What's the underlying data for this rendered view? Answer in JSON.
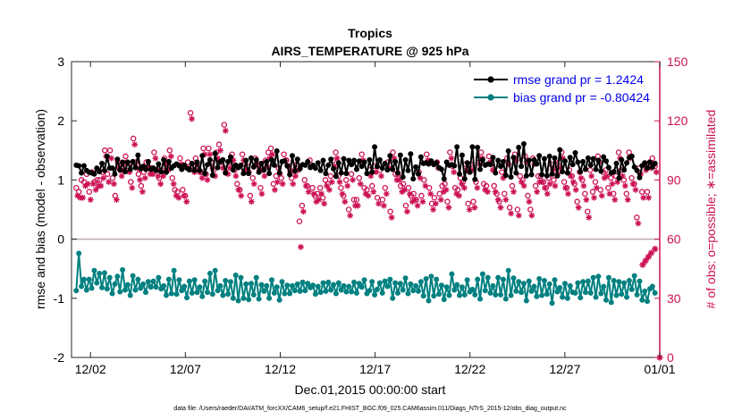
{
  "chart_data": {
    "type": "line",
    "title": "Tropics",
    "subtitle": "AIRS_TEMPERATURE @ 925 hPa",
    "xlabel": "Dec.01,2015 00:00:00 start",
    "ylabel_left": "rmse and bias (model - observation)",
    "ylabel_right": "# of obs: o=possible; ∗=assimilated",
    "footnote": "data file: /Users/raeder/DAI/ATM_forcXX/CAM6_setup/f.e21.FHIST_BGC.f09_025.CAM6assim.011/Diags_NTrS_2015-12/obs_diag_output.nc",
    "xlim": [
      0,
      31.0
    ],
    "ylim_left": [
      -2,
      3
    ],
    "ylim_right": [
      0,
      150
    ],
    "yticks_left": [
      -2,
      -1,
      0,
      1,
      2,
      3
    ],
    "yticks_right": [
      0,
      30,
      60,
      90,
      120,
      150
    ],
    "xticks": [
      {
        "pos": 1.0,
        "label": "12/02"
      },
      {
        "pos": 6.0,
        "label": "12/07"
      },
      {
        "pos": 11.0,
        "label": "12/12"
      },
      {
        "pos": 16.0,
        "label": "12/17"
      },
      {
        "pos": 21.0,
        "label": "12/22"
      },
      {
        "pos": 26.0,
        "label": "12/27"
      },
      {
        "pos": 31.0,
        "label": "01/01"
      }
    ],
    "zero_line": 0,
    "legend": {
      "placement": "top-right"
    },
    "series": [
      {
        "name": "rmse grand pr = 1.2424",
        "axis": "left",
        "color": "#000000",
        "values": [
          1.25,
          1.24,
          1.12,
          1.24,
          1.16,
          1.13,
          1.12,
          1.1,
          1.2,
          1.14,
          1.28,
          1.16,
          1.4,
          1.2,
          1.2,
          1.1,
          1.35,
          1.17,
          1.3,
          1.14,
          1.3,
          1.18,
          1.31,
          1.21,
          1.42,
          1.19,
          1.23,
          1.18,
          1.31,
          1.18,
          1.2,
          1.16,
          1.27,
          1.14,
          1.34,
          1.13,
          1.31,
          1.2,
          1.24,
          1.27,
          1.24,
          1.18,
          1.25,
          1.2,
          1.17,
          1.28,
          1.16,
          1.3,
          1.16,
          1.41,
          1.11,
          1.26,
          1.34,
          1.08,
          1.45,
          1.21,
          1.31,
          1.34,
          1.12,
          1.31,
          1.39,
          1.17,
          1.25,
          1.21,
          1.25,
          1.11,
          1.33,
          1.11,
          1.37,
          1.22,
          1.34,
          1.13,
          1.28,
          1.17,
          1.31,
          1.11,
          1.34,
          1.25,
          1.49,
          1.12,
          1.31,
          1.32,
          1.24,
          1.09,
          1.41,
          1.15,
          1.35,
          1.19,
          1.26,
          1.25,
          1.31,
          1.21,
          1.25,
          1.2,
          1.29,
          1.16,
          1.33,
          1.11,
          1.25,
          1.35,
          1.19,
          1.06,
          1.29,
          1.12,
          1.36,
          1.11,
          1.33,
          1.26,
          1.33,
          1.18,
          1.32,
          1.23,
          1.3,
          1.11,
          1.34,
          1.13,
          1.56,
          1.23,
          1.34,
          1.2,
          1.28,
          1.17,
          1.41,
          1.18,
          1.31,
          1.12,
          1.42,
          1.05,
          1.34,
          1.16,
          1.44,
          1.02,
          1.22,
          1.1,
          1.39,
          1.28,
          1.29,
          1.27,
          1.32,
          1.26,
          1.29,
          1.21,
          1.18,
          1.02,
          1.3,
          1.25,
          1.26,
          1.24,
          1.56,
          1.1,
          1.42,
          1.02,
          1.29,
          1.13,
          1.56,
          1.01,
          1.55,
          1.18,
          1.34,
          1.25,
          1.27,
          1.26,
          1.38,
          1.12,
          1.33,
          1.23,
          1.31,
          1.08,
          1.49,
          1.05,
          1.38,
          1.12,
          1.55,
          1.23,
          1.61,
          1.07,
          1.33,
          1.09,
          1.34,
          1.27,
          1.41,
          1.09,
          1.36,
          1.07,
          1.4,
          1.1,
          1.37,
          1.07,
          1.51,
          1.14,
          1.32,
          1.12,
          1.38,
          1.26,
          1.46,
          1.3,
          1.14,
          1.31,
          1.18,
          1.37,
          1.25,
          1.36,
          1.18,
          1.33,
          1.15,
          1.39,
          1.32,
          1.21,
          1.12,
          1.14,
          1.28,
          1.03,
          1.34,
          1.17,
          1.29,
          1.38,
          1.4,
          1.22,
          1.16,
          1.04,
          1.24,
          1.29,
          1.2,
          1.3,
          1.22,
          1.28
        ]
      },
      {
        "name": "bias grand pr = -0.80424",
        "axis": "left",
        "color": "#008080",
        "values": [
          -0.87,
          -0.24,
          -0.8,
          -0.68,
          -0.86,
          -0.68,
          -0.83,
          -0.53,
          -0.74,
          -0.58,
          -0.82,
          -0.57,
          -0.84,
          -0.65,
          -0.92,
          -0.76,
          -0.63,
          -0.89,
          -0.52,
          -0.86,
          -0.77,
          -0.95,
          -0.62,
          -0.86,
          -0.68,
          -0.83,
          -0.76,
          -0.9,
          -0.72,
          -0.81,
          -0.71,
          -0.81,
          -0.65,
          -0.84,
          -0.79,
          -0.95,
          -0.68,
          -0.92,
          -0.53,
          -0.93,
          -0.69,
          -0.87,
          -0.8,
          -0.99,
          -0.71,
          -0.91,
          -0.69,
          -0.9,
          -0.81,
          -0.97,
          -0.71,
          -0.9,
          -0.58,
          -0.93,
          -0.53,
          -0.87,
          -0.79,
          -0.95,
          -0.7,
          -0.93,
          -0.72,
          -1.0,
          -0.61,
          -1.04,
          -0.65,
          -1.0,
          -0.76,
          -1.02,
          -0.75,
          -0.94,
          -0.65,
          -1.01,
          -0.77,
          -0.88,
          -0.79,
          -1.0,
          -0.69,
          -0.91,
          -0.81,
          -1.03,
          -0.72,
          -0.92,
          -0.78,
          -0.92,
          -0.79,
          -0.87,
          -0.76,
          -0.88,
          -0.73,
          -0.87,
          -0.75,
          -0.82,
          -0.78,
          -0.93,
          -0.8,
          -0.9,
          -0.74,
          -0.88,
          -0.73,
          -0.86,
          -0.77,
          -0.92,
          -0.74,
          -0.86,
          -0.79,
          -0.89,
          -0.8,
          -0.89,
          -0.73,
          -0.91,
          -0.75,
          -0.81,
          -0.69,
          -0.92,
          -0.87,
          -0.72,
          -0.94,
          -0.85,
          -0.74,
          -0.91,
          -0.71,
          -0.8,
          -0.68,
          -1.0,
          -0.74,
          -0.91,
          -0.75,
          -0.86,
          -0.66,
          -0.92,
          -0.76,
          -0.87,
          -0.79,
          -0.88,
          -0.72,
          -0.96,
          -0.67,
          -1.04,
          -0.63,
          -0.96,
          -0.68,
          -0.93,
          -0.78,
          -1.02,
          -0.81,
          -0.95,
          -0.59,
          -0.86,
          -0.77,
          -0.95,
          -0.81,
          -0.94,
          -0.69,
          -0.89,
          -0.85,
          -0.94,
          -0.68,
          -1.01,
          -0.59,
          -0.87,
          -0.65,
          -0.91,
          -0.79,
          -0.94,
          -0.65,
          -0.94,
          -0.68,
          -1.01,
          -0.53,
          -0.95,
          -0.66,
          -0.88,
          -0.72,
          -0.9,
          -0.75,
          -1.04,
          -0.71,
          -0.88,
          -0.8,
          -0.97,
          -0.67,
          -0.95,
          -0.7,
          -0.93,
          -0.76,
          -1.08,
          -0.69,
          -0.89,
          -0.82,
          -0.98,
          -0.75,
          -1.0,
          -0.79,
          -0.9,
          -0.91,
          -0.74,
          -0.99,
          -0.72,
          -0.9,
          -0.71,
          -0.91,
          -0.65,
          -0.98,
          -0.63,
          -0.92,
          -0.8,
          -1.03,
          -0.65,
          -1.07,
          -0.7,
          -0.95,
          -0.72,
          -0.93,
          -0.74,
          -0.98,
          -0.7,
          -0.85,
          -0.62,
          -0.94,
          -0.71,
          -1.03,
          -0.88,
          -1.05,
          -0.84,
          -0.8,
          -0.91
        ]
      },
      {
        "name": "obs possible",
        "axis": "right",
        "color": "#cc1155",
        "marker": "o",
        "values": [
          86,
          84,
          90,
          89,
          93,
          84,
          94,
          89,
          90,
          90,
          94,
          105,
          93,
          105,
          91,
          82,
          99,
          95,
          98,
          102,
          97,
          89,
          111,
          99,
          93,
          87,
          94,
          99,
          96,
          96,
          104,
          95,
          91,
          95,
          101,
          98,
          105,
          91,
          85,
          84,
          101,
          85,
          82,
          99,
          124,
          97,
          101,
          97,
          94,
          106,
          93,
          106,
          99,
          95,
          104,
          108,
          99,
          118,
          96,
          99,
          103,
          95,
          88,
          85,
          103,
          98,
          97,
          82,
          91,
          101,
          98,
          86,
          95,
          100,
          104,
          106,
          88,
          92,
          96,
          91,
          103,
          100,
          97,
          91,
          95,
          98,
          69,
          77,
          90,
          87,
          100,
          86,
          82,
          83,
          86,
          81,
          90,
          88,
          92,
          100,
          104,
          92,
          86,
          82,
          90,
          75,
          93,
          80,
          80,
          91,
          103,
          86,
          85,
          95,
          87,
          97,
          81,
          95,
          80,
          86,
          99,
          74,
          104,
          93,
          93,
          87,
          88,
          77,
          86,
          82,
          83,
          80,
          94,
          82,
          90,
          103,
          86,
          78,
          81,
          99,
          83,
          87,
          88,
          79,
          104,
          97,
          86,
          85,
          91,
          89,
          98,
          78,
          98,
          79,
          89,
          101,
          104,
          88,
          87,
          102,
          98,
          87,
          83,
          79,
          94,
          83,
          101,
          76,
          87,
          103,
          75,
          92,
          90,
          102,
          82,
          75,
          101,
          87,
          92,
          92,
          89,
          86,
          91,
          98,
          90,
          96,
          99,
          104,
          89,
          86,
          95,
          92,
          88,
          79,
          94,
          90,
          83,
          74,
          95,
          84,
          89,
          102,
          85,
          94,
          95,
          86,
          91,
          83,
          92,
          104,
          95,
          90,
          83,
          104,
          91,
          88,
          71,
          96,
          84,
          98,
          84,
          99,
          101,
          97
        ]
      },
      {
        "name": "obs assimilated",
        "axis": "right",
        "color": "#cc1155",
        "marker": "*",
        "values": [
          82,
          81,
          81,
          87,
          88,
          80,
          88,
          85,
          87,
          87,
          91,
          102,
          89,
          101,
          88,
          80,
          96,
          92,
          95,
          99,
          94,
          86,
          108,
          96,
          90,
          84,
          91,
          96,
          93,
          93,
          101,
          92,
          88,
          92,
          98,
          95,
          102,
          88,
          82,
          81,
          98,
          82,
          79,
          96,
          121,
          94,
          98,
          94,
          91,
          103,
          90,
          103,
          96,
          92,
          101,
          105,
          96,
          115,
          93,
          96,
          100,
          92,
          85,
          82,
          100,
          95,
          94,
          79,
          88,
          98,
          95,
          83,
          92,
          97,
          101,
          103,
          85,
          89,
          93,
          88,
          100,
          97,
          94,
          88,
          92,
          95,
          56,
          74,
          87,
          84,
          97,
          83,
          79,
          80,
          83,
          78,
          87,
          85,
          89,
          97,
          101,
          89,
          83,
          79,
          87,
          72,
          90,
          77,
          77,
          88,
          100,
          83,
          82,
          92,
          84,
          94,
          78,
          92,
          77,
          83,
          96,
          71,
          101,
          90,
          90,
          84,
          85,
          74,
          83,
          79,
          80,
          77,
          91,
          79,
          87,
          100,
          83,
          75,
          78,
          96,
          80,
          84,
          85,
          76,
          101,
          94,
          83,
          82,
          88,
          86,
          95,
          75,
          95,
          76,
          86,
          98,
          101,
          85,
          84,
          99,
          95,
          84,
          80,
          76,
          91,
          80,
          98,
          73,
          84,
          100,
          72,
          89,
          87,
          99,
          79,
          72,
          98,
          84,
          89,
          89,
          86,
          83,
          88,
          95,
          87,
          93,
          96,
          101,
          86,
          83,
          92,
          89,
          85,
          76,
          91,
          87,
          80,
          71,
          92,
          81,
          86,
          99,
          82,
          91,
          92,
          83,
          88,
          80,
          89,
          101,
          92,
          87,
          80,
          101,
          88,
          85,
          68,
          93,
          81,
          95,
          81,
          96,
          98,
          94
        ]
      }
    ],
    "extra_markers": [
      {
        "name": "obs assimilated",
        "axis": "right",
        "color": "#cc1155",
        "marker": "*",
        "points": [
          [
            30.1,
            47
          ],
          [
            30.25,
            49
          ],
          [
            30.4,
            51
          ],
          [
            30.55,
            53
          ],
          [
            30.75,
            55
          ],
          [
            31.0,
            0
          ]
        ]
      }
    ]
  }
}
